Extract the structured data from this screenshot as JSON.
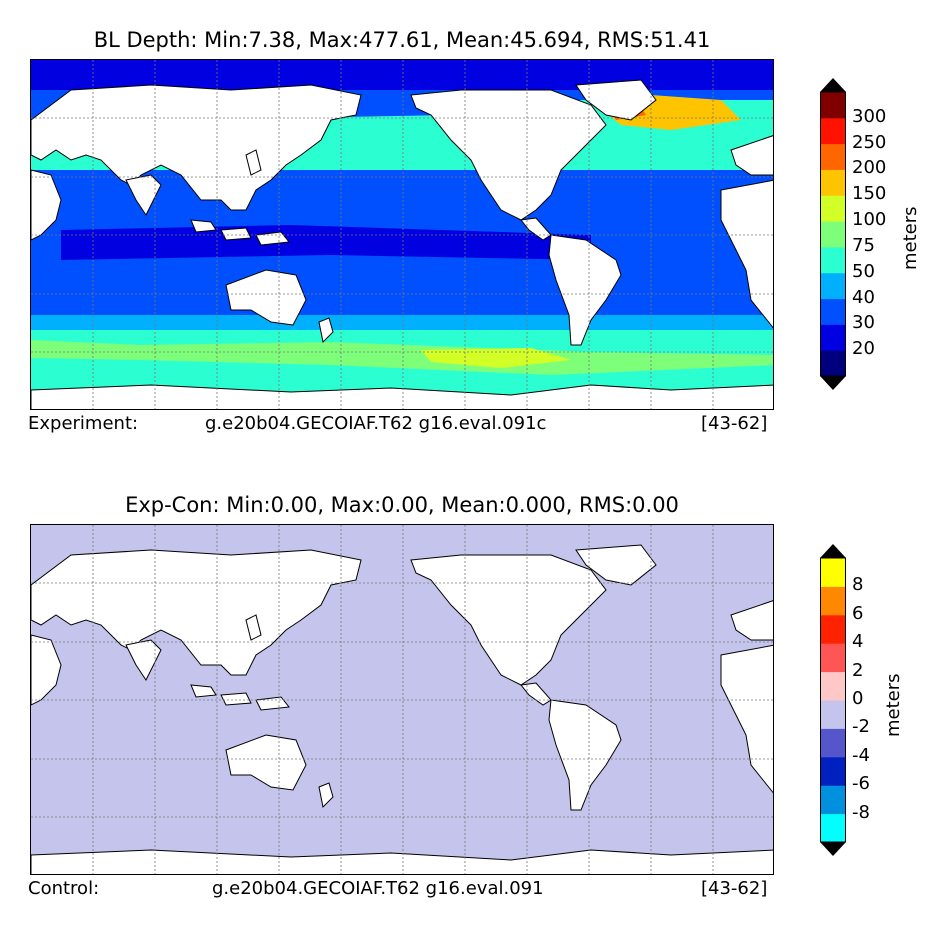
{
  "panels": [
    {
      "title": "BL Depth: Min:7.38, Max:477.61, Mean:45.694, RMS:51.41",
      "label_left": "Experiment:",
      "case_name": "g.e20b04.GECOIAF.T62 g16.eval.091c",
      "years": "[43-62]",
      "colorbar": {
        "unit": "meters",
        "extend_colors": {
          "low": "#000000",
          "high": "#000000"
        },
        "levels": [
          {
            "color": "#00007f",
            "label": "20"
          },
          {
            "color": "#0000e0",
            "label": "30"
          },
          {
            "color": "#0050ff",
            "label": "40"
          },
          {
            "color": "#00b0ff",
            "label": "50"
          },
          {
            "color": "#2bffd2",
            "label": "75"
          },
          {
            "color": "#7dff7a",
            "label": "100"
          },
          {
            "color": "#d2ff25",
            "label": "150"
          },
          {
            "color": "#ffc400",
            "label": "200"
          },
          {
            "color": "#ff6600",
            "label": "250"
          },
          {
            "color": "#ff1300",
            "label": "300"
          },
          {
            "color": "#800000",
            "label": ""
          }
        ]
      }
    },
    {
      "title": "Exp-Con: Min:0.00, Max:0.00, Mean:0.000, RMS:0.00",
      "label_left": "Control:",
      "case_name": "g.e20b04.GECOIAF.T62 g16.eval.091",
      "years": "[43-62]",
      "colorbar": {
        "unit": "meters",
        "extend_colors": {
          "low": "#000000",
          "high": "#000000"
        },
        "levels": [
          {
            "color": "#00ffff",
            "label": "-8"
          },
          {
            "color": "#0090dd",
            "label": "-6"
          },
          {
            "color": "#0020c0",
            "label": "-4"
          },
          {
            "color": "#5656cc",
            "label": "-2"
          },
          {
            "color": "#c4c4ec",
            "label": "0"
          },
          {
            "color": "#ffc8c8",
            "label": "2"
          },
          {
            "color": "#ff5555",
            "label": "4"
          },
          {
            "color": "#ff2200",
            "label": "6"
          },
          {
            "color": "#ff8800",
            "label": "8"
          },
          {
            "color": "#ffff00",
            "label": ""
          }
        ]
      }
    }
  ],
  "map_colors": {
    "land": "#ffffff",
    "coast": "#000000",
    "grid": "#777777",
    "diff_ocean": "#c4c4ec"
  }
}
